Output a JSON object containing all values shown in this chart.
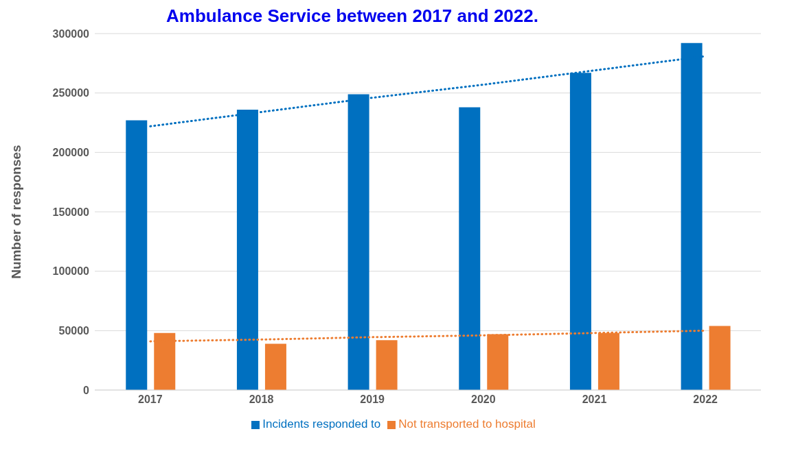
{
  "chart_data": {
    "type": "bar",
    "title": "Ambulance Service between 2017 and 2022.",
    "ylabel": "Number of responses",
    "categories": [
      "2017",
      "2018",
      "2019",
      "2020",
      "2021",
      "2022"
    ],
    "series": [
      {
        "name": "Incidents responded to",
        "color": "#0070c0",
        "values": [
          227000,
          236000,
          249000,
          238000,
          267000,
          292000
        ]
      },
      {
        "name": "Not transported to hospital",
        "color": "#ed7d31",
        "values": [
          48000,
          39000,
          42000,
          47000,
          48000,
          54000
        ]
      },
      {
        "type": "line",
        "color": "#0070c0",
        "line_style": "dotted",
        "values": [
          222000,
          234000,
          246000,
          257000,
          269000,
          281000
        ]
      },
      {
        "type": "line",
        "color": "#ed7d31",
        "line_style": "dotted",
        "values": [
          41000,
          42500,
          44500,
          46000,
          48000,
          50000
        ]
      }
    ],
    "ylim": [
      0,
      300000
    ],
    "yticks": [
      0,
      50000,
      100000,
      150000,
      200000,
      250000,
      300000
    ],
    "grid": "y",
    "legend": "bottom"
  }
}
